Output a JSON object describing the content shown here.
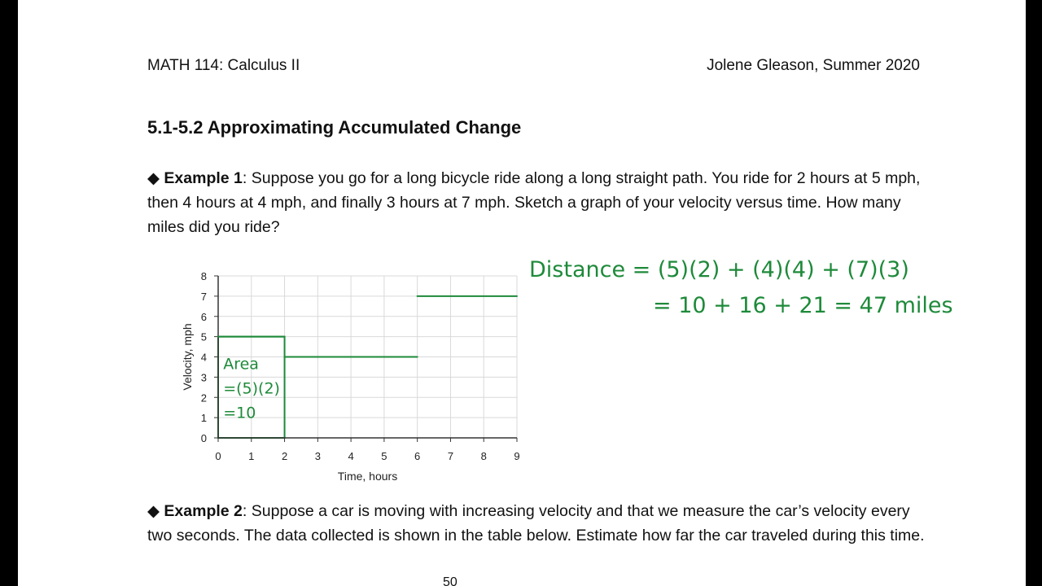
{
  "header": {
    "course": "MATH 114: Calculus II",
    "author": "Jolene Gleason, Summer 2020"
  },
  "section_title": "5.1-5.2 Approximating Accumulated Change",
  "example1": {
    "bullet": "◆",
    "label": "Example 1",
    "text": ":  Suppose you go for a long bicycle ride along a long straight path.  You ride for 2 hours at 5 mph, then 4 hours at 4 mph, and finally 3 hours at 7 mph.  Sketch a graph of your velocity versus time.  How many miles did you ride?"
  },
  "example2": {
    "bullet": "◆",
    "label": "Example 2",
    "text": ":  Suppose a car is moving with increasing velocity and that we measure the car’s velocity every two seconds.  The data collected is shown in the table below.  Estimate how far the car traveled during this time."
  },
  "bottom_cutoff": "50",
  "chart_data": {
    "type": "line",
    "xlabel": "Time, hours",
    "ylabel": "Velocity, mph",
    "xlim": [
      0,
      9
    ],
    "ylim": [
      0,
      8
    ],
    "x_ticks": [
      "0",
      "1",
      "2",
      "3",
      "4",
      "5",
      "6",
      "7",
      "8",
      "9"
    ],
    "y_ticks": [
      "0",
      "1",
      "2",
      "3",
      "4",
      "5",
      "6",
      "7",
      "8"
    ],
    "grid": true,
    "handwritten_segments": [
      {
        "x": [
          0,
          2
        ],
        "y": [
          5,
          5
        ]
      },
      {
        "x": [
          2,
          6
        ],
        "y": [
          4,
          4
        ]
      },
      {
        "x": [
          6,
          9
        ],
        "y": [
          7,
          7
        ]
      }
    ],
    "shaded_region": {
      "x": [
        0,
        2
      ],
      "y": [
        0,
        5
      ]
    },
    "area_annotation": [
      "Area",
      "=(5)(2)",
      "=10"
    ],
    "ink_color": "#1e8a3a"
  },
  "handwritten_work": {
    "line1": "Distance = (5)(2) + (4)(4) + (7)(3)",
    "line2": "= 10 + 16 + 21 = 47 miles"
  }
}
